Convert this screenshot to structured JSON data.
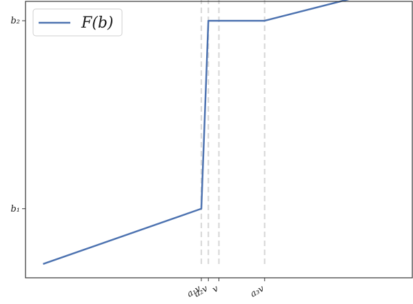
{
  "chart_data": {
    "type": "line",
    "title": "",
    "xlabel": "",
    "ylabel": "",
    "legend": {
      "position": "top-left",
      "label": "F(b)"
    },
    "grid": false,
    "colors": {
      "series": "#4c72b0",
      "guides": "#d9d9d9",
      "axes": "#333333"
    },
    "xlim": [
      0,
      1.1
    ],
    "ylim": [
      0,
      1.0
    ],
    "series": [
      {
        "name": "F(b)",
        "x": [
          0.05,
          0.5,
          0.52,
          0.68,
          1.05
        ],
        "y": [
          0.05,
          0.25,
          0.93,
          0.93,
          1.05
        ]
      }
    ],
    "yticks": [
      {
        "value": 0.25,
        "label": "b₁"
      },
      {
        "value": 0.93,
        "label": "b₂"
      }
    ],
    "xticks": [
      {
        "value": 0.5,
        "label": "a₁v"
      },
      {
        "value": 0.52,
        "label": "a₂v"
      },
      {
        "value": 0.55,
        "label": "v"
      },
      {
        "value": 0.68,
        "label": "a₃v"
      }
    ],
    "guides": [
      {
        "x": 0.5,
        "ymin": 0.05,
        "ymax": 1.05
      },
      {
        "x": 0.52,
        "ymin": 0.05,
        "ymax": 1.05
      },
      {
        "x": 0.55,
        "ymin": 0.05,
        "ymax": 1.05
      },
      {
        "x": 0.68,
        "ymin": 0.05,
        "ymax": 1.05
      }
    ]
  }
}
